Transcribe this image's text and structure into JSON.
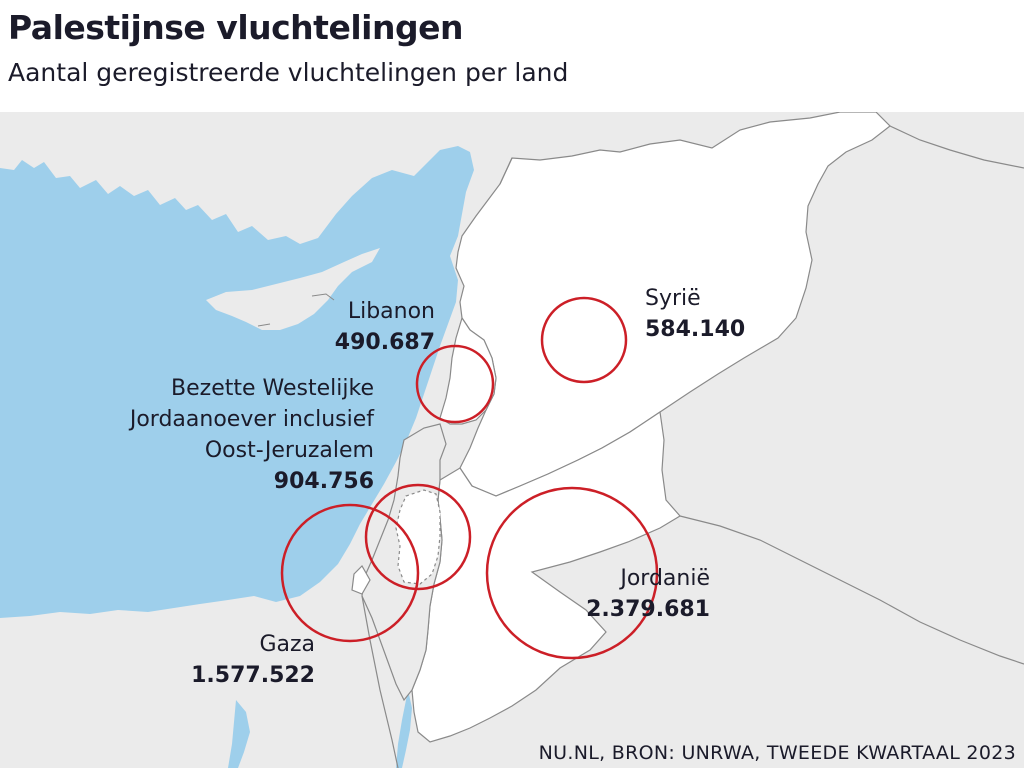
{
  "header": {
    "title": "Palestijnse vluchtelingen",
    "subtitle": "Aantal geregistreerde vluchtelingen per land"
  },
  "colors": {
    "sea": "#9ecfeb",
    "land_other": "#ebebeb",
    "land_highlight": "#ffffff",
    "border": "#8a8a8a",
    "circle": "#cc1f27",
    "text": "#1b1b2a"
  },
  "regions": [
    {
      "name": "Libanon",
      "value": "490.687",
      "refugees": 490687
    },
    {
      "name": "Syrië",
      "value": "584.140",
      "refugees": 584140
    },
    {
      "name_lines": [
        "Bezette Westelijke",
        "Jordaanoever inclusief",
        "Oost-Jeruzalem"
      ],
      "value": "904.756",
      "refugees": 904756
    },
    {
      "name": "Gaza",
      "value": "1.577.522",
      "refugees": 1577522
    },
    {
      "name": "Jordanië",
      "value": "2.379.681",
      "refugees": 2379681
    }
  ],
  "source": "NU.NL, BRON: UNRWA, TWEEDE KWARTAAL 2023"
}
